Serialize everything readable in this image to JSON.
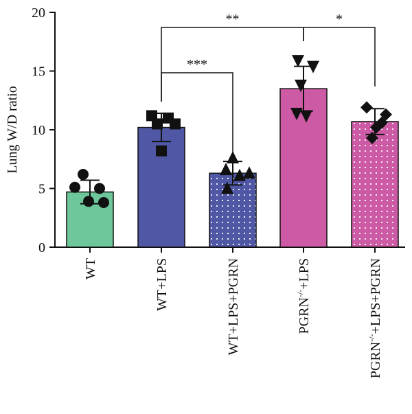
{
  "chart_data": {
    "type": "bar",
    "ylabel": "Lung W/D ratio",
    "ylim": [
      0,
      20
    ],
    "yticks": [
      "0",
      "5",
      "10",
      "15",
      "20"
    ],
    "categories": [
      {
        "label": "WT",
        "base": "WT",
        "sup": "",
        "rest": ""
      },
      {
        "label": "WT+LPS",
        "base": "WT+LPS",
        "sup": "",
        "rest": ""
      },
      {
        "label": "WT+LPS+PGRN",
        "base": "WT+LPS+PGRN",
        "sup": "",
        "rest": ""
      },
      {
        "label": "PGRN-/-+LPS",
        "base": "PGRN",
        "sup": "-/-",
        "rest": "+LPS"
      },
      {
        "label": "PGRN-/-+LPS+PGRN",
        "base": "PGRN",
        "sup": "-/-",
        "rest": "+LPS+PGRN"
      }
    ],
    "values": [
      4.7,
      10.2,
      6.3,
      13.5,
      10.7
    ],
    "errors": [
      1.0,
      1.2,
      1.0,
      1.9,
      1.1
    ],
    "colors": [
      "#6dc79a",
      "#5058a6",
      "#5058a6",
      "#cc5aa4",
      "#cc5aa4"
    ],
    "dotted": [
      false,
      false,
      true,
      false,
      true
    ],
    "markers": [
      "circle",
      "square",
      "triangle-up",
      "triangle-down",
      "diamond"
    ],
    "points": [
      [
        6.2,
        5.0,
        5.1,
        3.8,
        3.9
      ],
      [
        11.2,
        11.0,
        10.5,
        10.5,
        8.2
      ],
      [
        7.6,
        6.6,
        6.3,
        5.0,
        6.1
      ],
      [
        15.9,
        15.4,
        13.8,
        11.2,
        11.4
      ],
      [
        11.9,
        11.3,
        10.2,
        10.6,
        9.3
      ]
    ],
    "significance": [
      {
        "from": 1,
        "to": 3,
        "label": "**"
      },
      {
        "from": 3,
        "to": 4,
        "label": "*"
      },
      {
        "from": 1,
        "to": 2,
        "label": "***"
      }
    ]
  }
}
